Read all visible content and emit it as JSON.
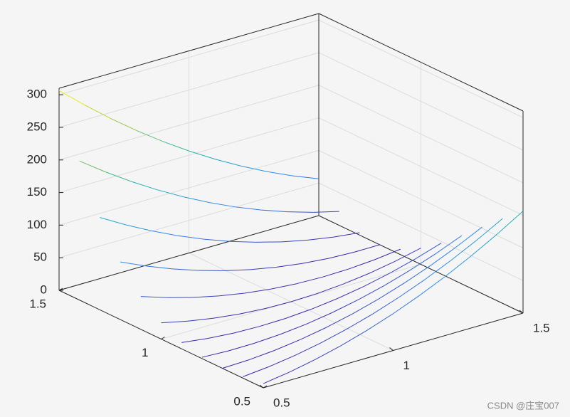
{
  "chart_data": {
    "type": "mesh",
    "colormap": "parula",
    "grid": true,
    "x": [
      0.5,
      0.6,
      0.7,
      0.8,
      0.9,
      1.0,
      1.1,
      1.2,
      1.3,
      1.4,
      1.5
    ],
    "y": [
      0.5,
      0.6,
      0.7,
      0.8,
      0.9,
      1.0,
      1.1,
      1.2,
      1.3,
      1.4,
      1.5
    ],
    "z": [
      [
        6.5,
        12.5,
        20.5,
        30.5,
        42.5,
        56.5,
        72.5,
        90.5,
        110.5,
        132.5,
        156.5
      ],
      [
        2.1,
        5.9,
        11.7,
        19.5,
        29.3,
        41.1,
        54.9,
        70.7,
        88.5,
        108.3,
        130.1
      ],
      [
        0.1,
        1.3,
        4.5,
        9.7,
        16.9,
        26.1,
        37.3,
        50.5,
        65.7,
        82.9,
        102.1
      ],
      [
        2.0,
        0.2,
        0.4,
        2.6,
        6.8,
        13.0,
        21.2,
        31.4,
        43.6,
        57.8,
        74.0
      ],
      [
        9.6,
        4.4,
        1.2,
        0.0,
        0.8,
        3.6,
        8.4,
        15.2,
        24.0,
        34.8,
        47.6
      ],
      [
        25,
        16,
        9,
        4,
        1,
        0,
        1,
        4,
        9,
        16,
        25
      ],
      [
        50.4,
        37.2,
        26.0,
        16.8,
        9.6,
        4.4,
        1.2,
        0.0,
        0.8,
        3.6,
        8.4
      ],
      [
        88.4,
        70.6,
        54.8,
        41.0,
        29.2,
        19.4,
        11.6,
        5.8,
        2.0,
        0.2,
        0.4
      ],
      [
        141.7,
        118.9,
        98.1,
        79.3,
        62.5,
        47.7,
        34.9,
        24.1,
        15.3,
        8.5,
        3.7
      ],
      [
        213.3,
        185.1,
        158.9,
        134.7,
        112.5,
        92.3,
        74.1,
        57.9,
        43.7,
        31.5,
        21.3
      ],
      [
        306.5,
        272.5,
        240.5,
        210.5,
        182.5,
        156.5,
        132.5,
        110.5,
        90.5,
        72.5,
        56.5
      ]
    ],
    "xlim": [
      0.5,
      1.5
    ],
    "ylim": [
      0.5,
      1.5
    ],
    "zlim": [
      0,
      310
    ],
    "xticks": [
      0.5,
      1,
      1.5
    ],
    "yticks": [
      0.5,
      1,
      1.5
    ],
    "zticks": [
      0,
      50,
      100,
      150,
      200,
      250,
      300
    ]
  },
  "watermark": "CSDN @庄宝007"
}
